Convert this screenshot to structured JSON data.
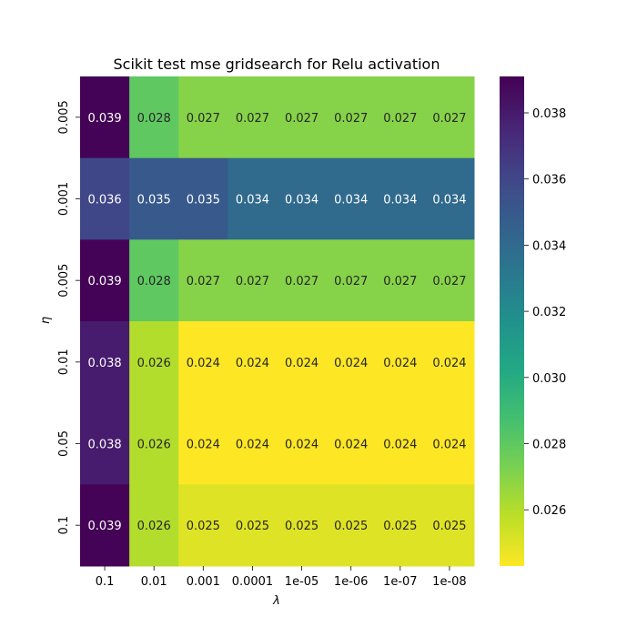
{
  "chart_data": {
    "type": "heatmap",
    "title": "Scikit test mse gridsearch for Relu activation",
    "xlabel": "λ",
    "ylabel": "η",
    "x_categories": [
      "0.1",
      "0.01",
      "0.001",
      "0.0001",
      "1e-05",
      "1e-06",
      "1e-07",
      "1e-08"
    ],
    "y_categories": [
      "0.005",
      "0.001",
      "0.005",
      "0.01",
      "0.05",
      "0.1"
    ],
    "values": [
      [
        0.039,
        0.028,
        0.027,
        0.027,
        0.027,
        0.027,
        0.027,
        0.027
      ],
      [
        0.036,
        0.035,
        0.035,
        0.034,
        0.034,
        0.034,
        0.034,
        0.034
      ],
      [
        0.039,
        0.028,
        0.027,
        0.027,
        0.027,
        0.027,
        0.027,
        0.027
      ],
      [
        0.038,
        0.026,
        0.024,
        0.024,
        0.024,
        0.024,
        0.024,
        0.024
      ],
      [
        0.038,
        0.026,
        0.024,
        0.024,
        0.024,
        0.024,
        0.024,
        0.024
      ],
      [
        0.039,
        0.026,
        0.025,
        0.025,
        0.025,
        0.025,
        0.025,
        0.025
      ]
    ],
    "value_labels": [
      [
        "0.039",
        "0.028",
        "0.027",
        "0.027",
        "0.027",
        "0.027",
        "0.027",
        "0.027"
      ],
      [
        "0.036",
        "0.035",
        "0.035",
        "0.034",
        "0.034",
        "0.034",
        "0.034",
        "0.034"
      ],
      [
        "0.039",
        "0.028",
        "0.027",
        "0.027",
        "0.027",
        "0.027",
        "0.027",
        "0.027"
      ],
      [
        "0.038",
        "0.026",
        "0.024",
        "0.024",
        "0.024",
        "0.024",
        "0.024",
        "0.024"
      ],
      [
        "0.038",
        "0.026",
        "0.024",
        "0.024",
        "0.024",
        "0.024",
        "0.024",
        "0.024"
      ],
      [
        "0.039",
        "0.026",
        "0.025",
        "0.025",
        "0.025",
        "0.025",
        "0.025",
        "0.025"
      ]
    ],
    "colormap": "viridis_r",
    "colorbar": {
      "range": [
        0.0243,
        0.0391
      ],
      "ticks": [
        0.026,
        0.028,
        0.03,
        0.032,
        0.034,
        0.036,
        0.038
      ],
      "tick_labels": [
        "0.026",
        "0.028",
        "0.030",
        "0.032",
        "0.034",
        "0.036",
        "0.038"
      ]
    }
  }
}
